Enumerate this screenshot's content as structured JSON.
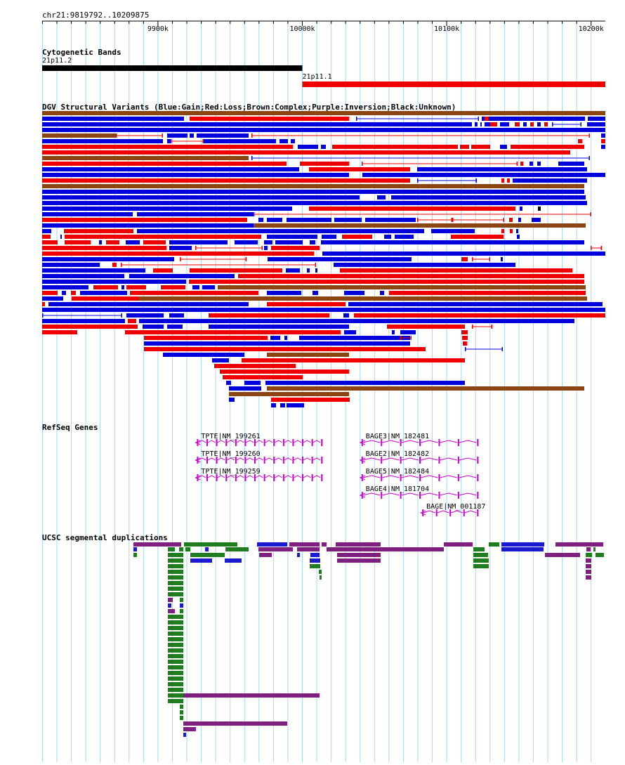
{
  "coords": {
    "label": "chr21:9819792..10209875",
    "start": 9819792,
    "end": 10209875
  },
  "ruler": {
    "ticks": [
      {
        "pos": 9900000,
        "label": "9900k"
      },
      {
        "pos": 10000000,
        "label": "10000k"
      },
      {
        "pos": 10100000,
        "label": "10100k"
      },
      {
        "pos": 10200000,
        "label": "10200k"
      }
    ]
  },
  "tracks": {
    "cyto": {
      "title": "Cytogenetic Bands"
    },
    "dgv": {
      "title": "DGV Structural Variants (Blue:Gain;Red:Loss;Brown:Complex;Purple:Inversion;Black:Unknown)"
    },
    "refseq": {
      "title": "RefSeq Genes"
    },
    "segdup": {
      "title": "UCSC segmental duplications"
    }
  },
  "colors": {
    "gain": "#0000dd",
    "loss": "#ee0000",
    "complex": "#8b4513",
    "inversion": "#800080",
    "unknown": "#000000",
    "gene": "#cc00cc",
    "segdup_green": "#1e7d1e",
    "segdup_purple": "#7f1f7f",
    "segdup_blue": "#1a1ad0",
    "grid": "#a8d8f0"
  },
  "cyto_bands": [
    {
      "name": "21p11.2",
      "start": 9819792,
      "end": 10000000,
      "color": "#000000"
    },
    {
      "name": "21p11.1",
      "start": 10000000,
      "end": 10209875,
      "color": "#ee0000"
    }
  ],
  "genes": [
    {
      "name": "TPTE|NM_199261",
      "start": 9927000,
      "end": 10013000,
      "strand": "-",
      "exons": 14
    },
    {
      "name": "TPTE|NM_199260",
      "start": 9927000,
      "end": 10013000,
      "strand": "-",
      "exons": 14
    },
    {
      "name": "TPTE|NM_199259",
      "start": 9927000,
      "end": 10013000,
      "strand": "-",
      "exons": 14
    },
    {
      "name": "BAGE3|NM_182481",
      "start": 10041000,
      "end": 10121000,
      "strand": "-",
      "exons": 7
    },
    {
      "name": "BAGE2|NM_182482",
      "start": 10041000,
      "end": 10121000,
      "strand": "-",
      "exons": 7
    },
    {
      "name": "BAGE5|NM_182484",
      "start": 10041000,
      "end": 10121000,
      "strand": "-",
      "exons": 7
    },
    {
      "name": "BAGE4|NM_181704",
      "start": 10041000,
      "end": 10121000,
      "strand": "-",
      "exons": 7
    },
    {
      "name": "BAGE|NM_001187",
      "start": 10083000,
      "end": 10121000,
      "strand": "-",
      "exons": 5
    }
  ]
}
